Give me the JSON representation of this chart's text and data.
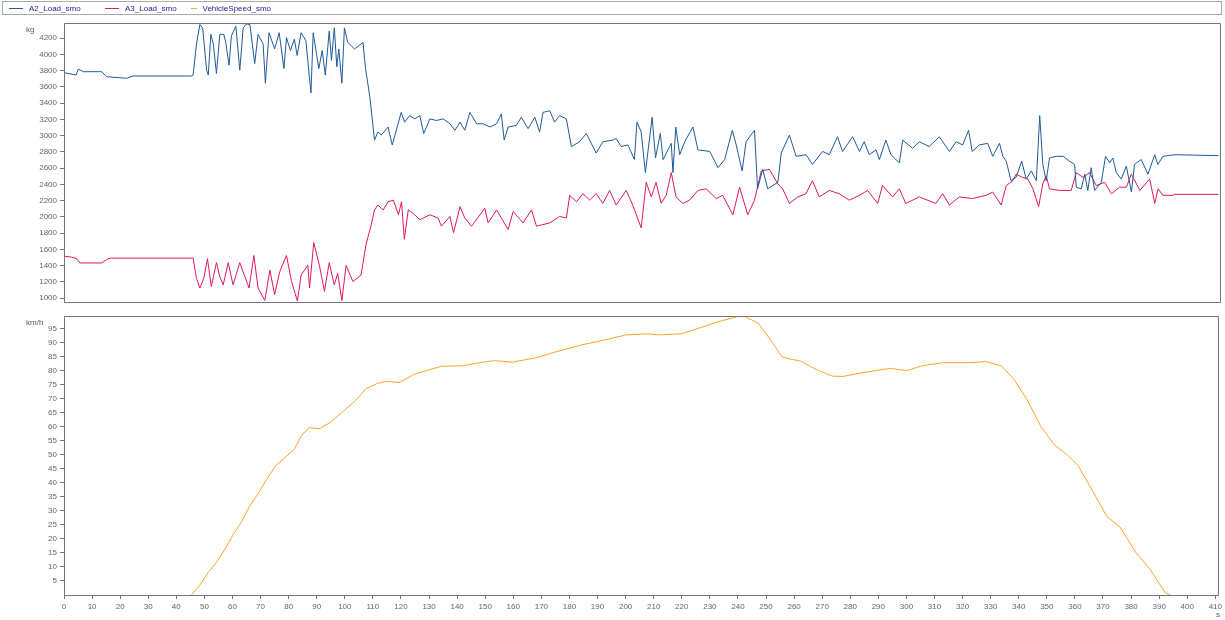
{
  "chart_data": [
    {
      "type": "line",
      "ylabel": "kg",
      "xlim": [
        0,
        411
      ],
      "ylim": [
        950,
        4390
      ],
      "yticks": [
        1000,
        1200,
        1400,
        1600,
        1800,
        2000,
        2200,
        2400,
        2600,
        2800,
        3000,
        3200,
        3400,
        3600,
        3800,
        4000,
        4200
      ],
      "tick_labels": "y",
      "grid": false,
      "legend": "top",
      "series": [
        {
          "name": "A2_Load_smo",
          "color": "#1f5b99",
          "x": [
            0,
            4.3,
            5.1,
            6.9,
            13.4,
            15.1,
            22.2,
            24.6,
            45.3,
            45.9,
            47.1,
            48.3,
            49.3,
            50.7,
            51.3,
            52.2,
            53.1,
            54.2,
            55.4,
            56.8,
            57.5,
            58.7,
            59.5,
            61.1,
            62.5,
            63.7,
            64.9,
            66.1,
            67.8,
            69.0,
            70.8,
            71.6,
            72.9,
            74.9,
            76.5,
            78.2,
            79.1,
            80.5,
            81.9,
            82.9,
            84.3,
            86.0,
            87.8,
            88.6,
            90.6,
            91.8,
            92.9,
            94.3,
            95.1,
            96.1,
            97.0,
            97.7,
            98.8,
            99.7,
            100.9,
            103.3,
            106.3,
            107.2,
            108.7,
            110.4,
            111.6,
            112.8,
            115.2,
            116.7,
            119.9,
            121.1,
            122.9,
            124.7,
            126.5,
            127.9,
            130.1,
            132.4,
            134.8,
            137.2,
            139.0,
            140.8,
            142.5,
            144.3,
            146.7,
            149.0,
            151.4,
            153.8,
            155.5,
            156.5,
            157.9,
            160.8,
            162.6,
            165.0,
            167.4,
            169.1,
            170.3,
            172.7,
            174.4,
            176.2,
            178.6,
            180.4,
            183.3,
            185.7,
            189.2,
            191.6,
            195.2,
            196.3,
            198.1,
            200.5,
            202.8,
            203.7,
            205.2,
            206.7,
            209.1,
            210.3,
            212.0,
            213.0,
            215.9,
            216.5,
            217.5,
            218.9,
            220.7,
            223.6,
            225.4,
            229.6,
            232.5,
            234.9,
            237.6,
            239.0,
            241.1,
            242.5,
            245.5,
            246.6,
            248.4,
            250.2,
            253.8,
            255.0,
            257.9,
            260.3,
            263.8,
            266.1,
            269.7,
            272.1,
            275.0,
            276.8,
            280.4,
            282.8,
            284.5,
            286.3,
            288.7,
            289.9,
            292.2,
            294.0,
            297.0,
            298.2,
            301.7,
            304.1,
            307.6,
            311.2,
            314.8,
            317.2,
            319.5,
            321.6,
            322.9,
            325.4,
            328.4,
            330.2,
            332.6,
            333.8,
            335.0,
            336.7,
            338.5,
            340.5,
            342.1,
            343.9,
            345.7,
            346.9,
            348.0,
            349.2,
            350.4,
            352.8,
            355.2,
            357.5,
            359.3,
            359.9,
            361.7,
            362.9,
            364.0,
            365.2,
            366.4,
            368.8,
            370.3,
            371.8,
            372.9,
            374.1,
            375.9,
            377.7,
            379.5,
            380.6,
            383.0,
            385.4,
            387.8,
            388.9,
            390.7,
            394.9,
            410.5
          ],
          "values": [
            3776,
            3747,
            3820,
            3788,
            3788,
            3727,
            3707,
            3735,
            3735,
            3747,
            4128,
            4368,
            4328,
            3807,
            3747,
            4248,
            4128,
            3767,
            4248,
            4248,
            4148,
            3868,
            4228,
            4348,
            3807,
            4328,
            4376,
            4368,
            3888,
            4248,
            4128,
            3647,
            4268,
            4068,
            4268,
            3827,
            4208,
            4048,
            4188,
            3988,
            4268,
            4168,
            3527,
            4268,
            3827,
            4048,
            3747,
            4288,
            3928,
            4328,
            3848,
            4068,
            3647,
            4328,
            4148,
            4068,
            4148,
            3827,
            3487,
            2946,
            3047,
            3007,
            3107,
            2886,
            3287,
            3167,
            3247,
            3207,
            3247,
            3027,
            3207,
            3187,
            3207,
            3147,
            3067,
            3167,
            3067,
            3287,
            3147,
            3147,
            3107,
            3147,
            3267,
            2946,
            3107,
            3127,
            3227,
            3087,
            3227,
            3047,
            3287,
            3307,
            3167,
            3247,
            3207,
            2866,
            2926,
            3027,
            2786,
            2926,
            2946,
            2966,
            2866,
            2886,
            2706,
            3167,
            3047,
            2546,
            3227,
            2726,
            3027,
            2706,
            2906,
            2546,
            3107,
            2766,
            2926,
            3107,
            2826,
            2806,
            2606,
            2706,
            3067,
            2886,
            2566,
            2926,
            3067,
            2346,
            2586,
            2346,
            2426,
            2786,
            3007,
            2746,
            2766,
            2646,
            2806,
            2766,
            2987,
            2806,
            2987,
            2806,
            2926,
            2766,
            2826,
            2706,
            2946,
            2766,
            2666,
            2946,
            2846,
            2926,
            2866,
            2987,
            2806,
            2926,
            2886,
            3067,
            2806,
            2886,
            2906,
            2746,
            2906,
            2746,
            2686,
            2446,
            2486,
            2686,
            2466,
            2566,
            2446,
            3247,
            2646,
            2446,
            2726,
            2746,
            2746,
            2686,
            2646,
            2366,
            2346,
            2526,
            2326,
            2606,
            2326,
            2426,
            2746,
            2666,
            2726,
            2546,
            2466,
            2626,
            2306,
            2646,
            2706,
            2526,
            2766,
            2646,
            2746,
            2766,
            2754
          ]
        },
        {
          "name": "A3_Load_smo",
          "color": "#e0195a",
          "x": [
            0,
            2.7,
            4.5,
            5.7,
            13.4,
            15.7,
            16.9,
            45.9,
            47.1,
            48.3,
            49.7,
            51.0,
            52.4,
            54.2,
            55.4,
            56.6,
            58.4,
            60.1,
            62.5,
            64.3,
            65.8,
            67.5,
            69.0,
            71.4,
            73.2,
            74.9,
            76.7,
            79.1,
            80.9,
            83.0,
            84.3,
            86.7,
            87.3,
            88.8,
            90.8,
            92.6,
            94.3,
            96.1,
            97.3,
            98.8,
            100.3,
            102.7,
            105.6,
            107.4,
            109.1,
            110.4,
            111.6,
            113.5,
            115.2,
            117.1,
            118.9,
            120.0,
            121.0,
            122.4,
            124.7,
            126.5,
            130.1,
            133.0,
            134.2,
            137.2,
            138.5,
            140.8,
            142.5,
            144.9,
            149.6,
            150.8,
            153.8,
            157.9,
            159.7,
            163.2,
            166.2,
            168.0,
            172.7,
            176.2,
            178.6,
            179.8,
            182.2,
            184.5,
            186.9,
            189.2,
            191.6,
            194.0,
            196.3,
            199.9,
            202.2,
            205.2,
            207.0,
            208.8,
            210.5,
            212.3,
            214.1,
            215.9,
            217.6,
            220.0,
            222.4,
            225.4,
            228.3,
            231.9,
            234.2,
            237.8,
            240.2,
            243.1,
            245.5,
            247.9,
            250.8,
            253.8,
            255.5,
            257.9,
            260.9,
            263.8,
            266.1,
            268.5,
            272.1,
            275.6,
            279.2,
            282.8,
            285.7,
            289.3,
            291.0,
            294.6,
            297.0,
            299.3,
            304.1,
            310.0,
            312.4,
            314.8,
            318.3,
            323.0,
            327.8,
            330.2,
            333.2,
            335.0,
            337.3,
            338.5,
            340.9,
            342.7,
            344.5,
            346.5,
            348.0,
            349.2,
            350.4,
            353.9,
            358.1,
            359.9,
            362.3,
            364.6,
            367.0,
            370.0,
            372.4,
            375.3,
            377.7,
            379.5,
            382.5,
            386.0,
            387.8,
            389.0,
            390.7,
            394.3,
            394.9,
            410.5
          ],
          "values": [
            1517,
            1505,
            1485,
            1433,
            1433,
            1485,
            1493,
            1493,
            1244,
            1124,
            1244,
            1485,
            1144,
            1437,
            1264,
            1164,
            1437,
            1164,
            1437,
            1264,
            1124,
            1525,
            1124,
            972,
            1344,
            1044,
            1324,
            1525,
            1204,
            964,
            1284,
            1404,
            1124,
            1685,
            1404,
            1084,
            1437,
            1164,
            1304,
            972,
            1404,
            1204,
            1284,
            1665,
            1886,
            2086,
            2146,
            2086,
            2186,
            2206,
            2026,
            2186,
            1725,
            2086,
            2026,
            1966,
            2026,
            1986,
            1886,
            2006,
            1806,
            2126,
            1986,
            1886,
            2106,
            1926,
            2086,
            1846,
            2066,
            1926,
            2086,
            1886,
            1926,
            2006,
            1986,
            2266,
            2186,
            2286,
            2206,
            2286,
            2166,
            2326,
            2146,
            2326,
            2146,
            1866,
            2426,
            2246,
            2426,
            2166,
            2266,
            2546,
            2246,
            2166,
            2206,
            2326,
            2346,
            2226,
            2266,
            2026,
            2366,
            2026,
            2206,
            2566,
            2586,
            2406,
            2346,
            2166,
            2246,
            2286,
            2446,
            2246,
            2326,
            2286,
            2206,
            2266,
            2326,
            2166,
            2386,
            2246,
            2346,
            2166,
            2246,
            2166,
            2286,
            2146,
            2246,
            2226,
            2266,
            2306,
            2146,
            2386,
            2446,
            2526,
            2486,
            2466,
            2346,
            2126,
            2406,
            2506,
            2346,
            2326,
            2326,
            2546,
            2486,
            2546,
            2386,
            2426,
            2286,
            2366,
            2366,
            2526,
            2326,
            2466,
            2166,
            2346,
            2266,
            2266,
            2278,
            2278
          ]
        }
      ]
    },
    {
      "type": "line",
      "ylabel": "km/h",
      "xlabel": "s",
      "xlim": [
        0,
        411
      ],
      "ylim": [
        0,
        99.5
      ],
      "xticks": [
        0,
        10,
        20,
        30,
        40,
        50,
        60,
        70,
        80,
        90,
        100,
        110,
        120,
        130,
        140,
        150,
        160,
        170,
        180,
        190,
        200,
        210,
        220,
        230,
        240,
        250,
        260,
        270,
        280,
        290,
        300,
        310,
        320,
        330,
        340,
        350,
        360,
        370,
        380,
        390,
        400,
        410
      ],
      "yticks": [
        5,
        10,
        15,
        20,
        25,
        30,
        35,
        40,
        45,
        50,
        55,
        60,
        65,
        70,
        75,
        80,
        85,
        90,
        95
      ],
      "grid": false,
      "legend": "top",
      "series": [
        {
          "name": "VehicleSpeed_smo",
          "color": "#ffa22e",
          "x": [
            45.4,
            48.3,
            51.3,
            54.2,
            57.2,
            60.1,
            63.1,
            66.1,
            69.6,
            72.0,
            75.5,
            79.1,
            82.0,
            84.4,
            87.3,
            90.8,
            95.0,
            99.2,
            103.9,
            107.4,
            111.6,
            115.2,
            119.3,
            125.0,
            134.4,
            141.9,
            149.4,
            153.2,
            159.8,
            169.2,
            173.9,
            184.2,
            192.7,
            200.2,
            207.8,
            211.5,
            220.0,
            228.5,
            234.1,
            239.8,
            242.6,
            247.3,
            252.0,
            255.7,
            259.5,
            262.3,
            268.0,
            273.6,
            277.4,
            284.9,
            294.3,
            300.0,
            305.6,
            313.1,
            322.5,
            328.2,
            333.8,
            338.5,
            343.2,
            347.9,
            352.6,
            357.3,
            361.1,
            365.8,
            371.4,
            376.1,
            381.8,
            386.5,
            392.1,
            394.0
          ],
          "values": [
            0,
            3.4,
            8.0,
            11.5,
            16.1,
            21.3,
            25.9,
            31.7,
            36.9,
            41.0,
            46.2,
            49.3,
            51.9,
            56.6,
            59.7,
            59.2,
            61.6,
            65.3,
            69.3,
            73.4,
            75.4,
            76.2,
            75.7,
            78.8,
            81.5,
            81.7,
            83.0,
            83.5,
            83.0,
            84.8,
            86.3,
            89.1,
            90.9,
            92.7,
            93.1,
            92.7,
            93.1,
            95.9,
            97.7,
            99.2,
            99.2,
            96.8,
            90.4,
            84.8,
            83.9,
            83.4,
            80.3,
            78.0,
            77.9,
            79.3,
            80.8,
            79.9,
            81.7,
            82.8,
            82.8,
            83.2,
            81.7,
            76.6,
            69.2,
            60.0,
            53.6,
            49.9,
            46.2,
            38.0,
            27.9,
            24.2,
            15.0,
            9.5,
            0.9,
            0
          ]
        }
      ]
    }
  ]
}
